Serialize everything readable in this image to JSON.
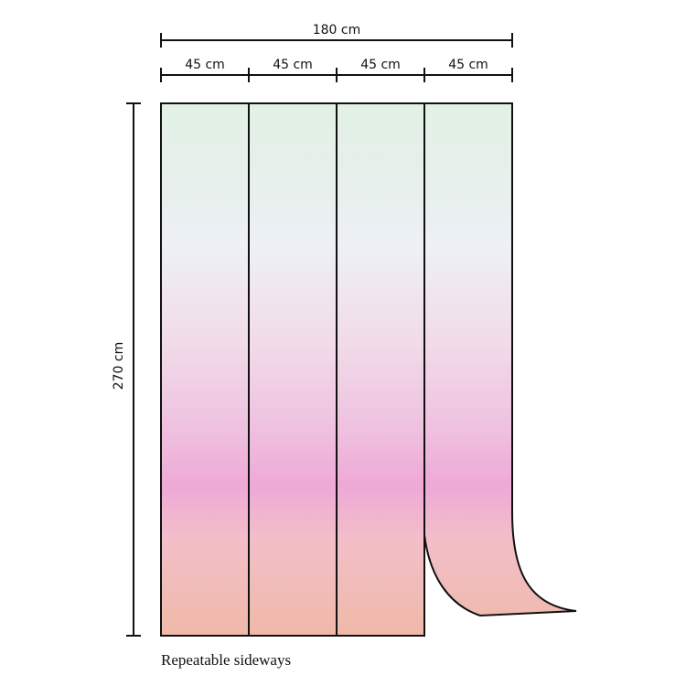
{
  "dimensions": {
    "total_width": "180 cm",
    "panel_widths": [
      "45 cm",
      "45 cm",
      "45 cm",
      "45 cm"
    ],
    "height": "270 cm"
  },
  "caption": "Repeatable sideways"
}
